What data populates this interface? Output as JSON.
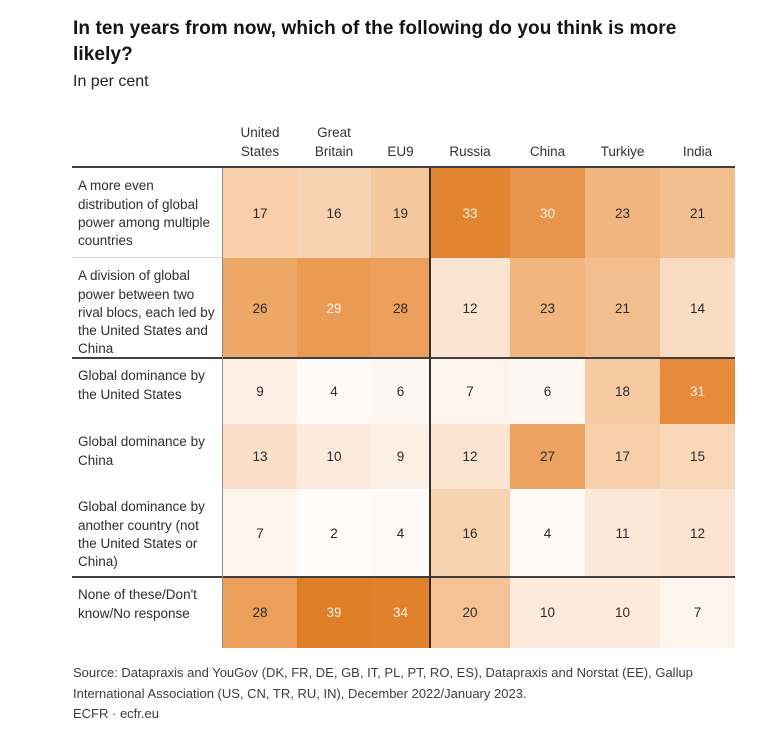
{
  "header": {
    "title": "In ten years from now, which of the following do you think is more likely?",
    "subtitle": "In per cent"
  },
  "chart_data": {
    "type": "heatmap",
    "unit": "per cent",
    "title": "In ten years from now, which of the following do you think is more likely?",
    "columns": [
      "United States",
      "Great Britain",
      "EU9",
      "Russia",
      "China",
      "Turkiye",
      "India"
    ],
    "rows": [
      {
        "label": "A more even distribution of global power among multiple countries",
        "values": [
          17,
          16,
          19,
          33,
          30,
          23,
          21
        ]
      },
      {
        "label": "A division of global power between two rival blocs, each led by the United States and China",
        "values": [
          26,
          29,
          28,
          12,
          23,
          21,
          14
        ]
      },
      {
        "label": "Global dominance by the United States",
        "values": [
          9,
          4,
          6,
          7,
          6,
          18,
          31
        ]
      },
      {
        "label": "Global dominance by China",
        "values": [
          13,
          10,
          9,
          12,
          27,
          17,
          15
        ]
      },
      {
        "label": "Global dominance by another country (not the United States or China)",
        "values": [
          7,
          2,
          4,
          16,
          4,
          11,
          12
        ]
      },
      {
        "label": "None of these/Don't know/No response",
        "values": [
          28,
          39,
          34,
          20,
          10,
          10,
          7
        ]
      }
    ],
    "color_scale": {
      "min_color": "#FFFFFF",
      "max_color": "#DE7E27",
      "white_text_threshold": 29,
      "dark_text_color": "#2b2b2b",
      "light_text_color": "#FCF2E4"
    },
    "color_map": {
      "2": "#FFFDFC",
      "4": "#FEFAF7",
      "6": "#FEF7F1",
      "7": "#FDF4EC",
      "9": "#FDEFE3",
      "10": "#FCEBDD",
      "11": "#FCE8D7",
      "12": "#FBE4D1",
      "13": "#FBDFC8",
      "14": "#FADCC2",
      "15": "#F9D7B9",
      "16": "#F8D3B2",
      "17": "#F7CFAB",
      "18": "#F6CBA4",
      "19": "#F5C79D",
      "20": "#F4C295",
      "21": "#F3BE8E",
      "23": "#F1B57F",
      "26": "#EDA767",
      "27": "#ECA361",
      "28": "#EB9F5A",
      "29": "#E99A53",
      "30": "#E8964D",
      "31": "#E58A3B",
      "33": "#E28532",
      "34": "#E0812C",
      "39": "#DE7E27"
    },
    "group_separators_after_rows": [
      2,
      5
    ],
    "column_group_separator_after": 3,
    "legend": "none",
    "grid": "group rules only"
  },
  "footer": {
    "source": "Source: Datapraxis and YouGov (DK, FR, DE, GB, IT, PL, PT, RO, ES), Datapraxis and Norstat (EE), Gallup International Association (US, CN, TR, RU, IN), December 2022/January 2023.",
    "credit": "ECFR · ecfr.eu"
  }
}
